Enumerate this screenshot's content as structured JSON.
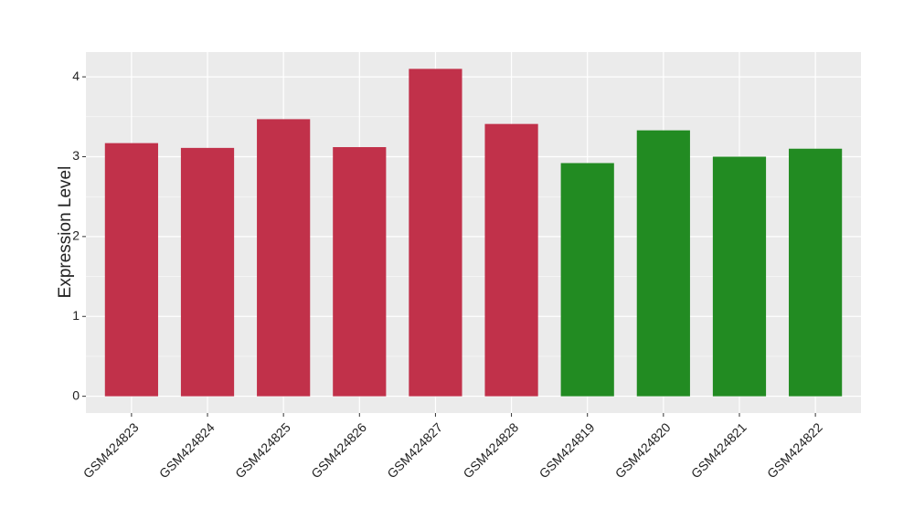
{
  "chart_data": {
    "type": "bar",
    "y_label": "Expression Level",
    "categories": [
      "GSM424823",
      "GSM424824",
      "GSM424825",
      "GSM424826",
      "GSM424827",
      "GSM424828",
      "GSM424819",
      "GSM424820",
      "GSM424821",
      "GSM424822"
    ],
    "values": [
      3.17,
      3.11,
      3.47,
      3.12,
      4.1,
      3.41,
      2.92,
      3.33,
      3.0,
      3.1
    ],
    "colors": [
      "#c1314a",
      "#c1314a",
      "#c1314a",
      "#c1314a",
      "#c1314a",
      "#c1314a",
      "#228b22",
      "#228b22",
      "#228b22",
      "#228b22"
    ],
    "ylim": [
      -0.21,
      4.31
    ],
    "yticks": [
      0,
      1,
      2,
      3,
      4
    ],
    "grid": true
  }
}
